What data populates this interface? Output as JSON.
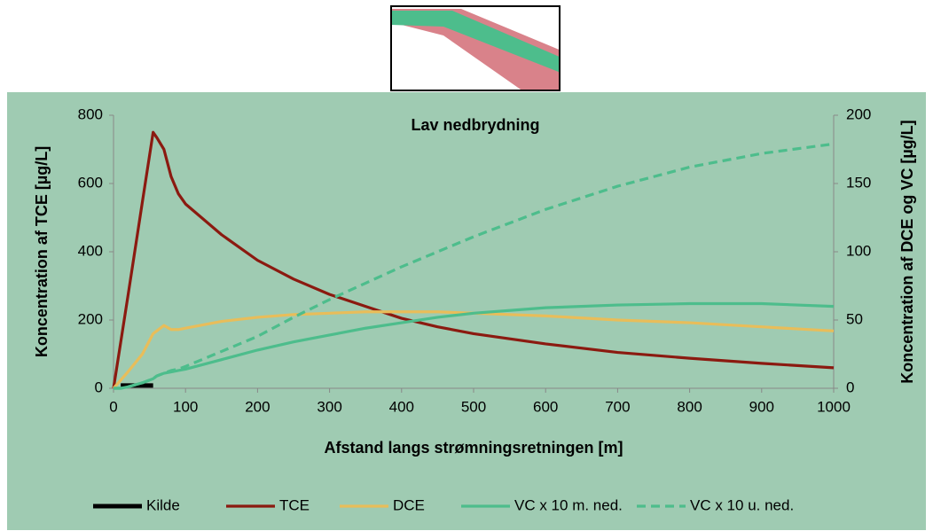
{
  "chart_data": {
    "type": "line",
    "title": "Lav nedbrydning",
    "x_label": "Afstand langs strømningsretningen [m]",
    "y_label": "Koncentration af TCE [µg/L]",
    "y2_label": "Koncentration af DCE og VC [µg/L]",
    "x": [
      0,
      10,
      20,
      40,
      55,
      60,
      70,
      80,
      90,
      100,
      150,
      200,
      250,
      300,
      350,
      400,
      450,
      500,
      600,
      700,
      800,
      900,
      1000
    ],
    "xlim": [
      0,
      1000
    ],
    "xticks": [
      0,
      100,
      200,
      300,
      400,
      500,
      600,
      700,
      800,
      900,
      1000
    ],
    "ylim": [
      0,
      800
    ],
    "yticks": [
      0,
      200,
      400,
      600,
      800
    ],
    "y2lim": [
      0,
      200
    ],
    "y2ticks": [
      0,
      50,
      100,
      150,
      200
    ],
    "grid": false,
    "legend": "bottom",
    "series": [
      {
        "name": "Kilde",
        "color": "#000000",
        "values": [
          null,
          8,
          8,
          8,
          8,
          null,
          null,
          null,
          null,
          null,
          null,
          null,
          null,
          null,
          null,
          null,
          null,
          null,
          null,
          null,
          null,
          null,
          null
        ]
      },
      {
        "name": "TCE",
        "color": "#8b1a10",
        "values": [
          0,
          135,
          270,
          545,
          750,
          735,
          700,
          620,
          570,
          540,
          450,
          375,
          320,
          275,
          240,
          205,
          180,
          160,
          130,
          105,
          88,
          73,
          60
        ]
      },
      {
        "name": "DCE",
        "color": "#e8bd5a",
        "axis": "y2",
        "values": [
          0,
          6,
          12,
          25,
          40,
          42,
          46,
          43,
          43,
          44,
          49,
          52,
          54,
          55,
          56,
          56,
          56,
          55,
          53,
          50,
          48,
          45,
          42
        ]
      },
      {
        "name": "VC x 10 m. ned.",
        "color": "#4dbd8c",
        "axis": "y2",
        "values": [
          0,
          0,
          1,
          4,
          7,
          9,
          11,
          12,
          13,
          14,
          21,
          28,
          34,
          39,
          44,
          48,
          52,
          55,
          59,
          61,
          62,
          62,
          60
        ]
      },
      {
        "name": "VC x 10 u. ned.",
        "color": "#4dbd8c",
        "axis": "y2",
        "dashed": true,
        "values": [
          0,
          0,
          1,
          4,
          7,
          9,
          11,
          13,
          14,
          16,
          27,
          38,
          52,
          65,
          77,
          89,
          100,
          111,
          131,
          148,
          162,
          172,
          179
        ]
      }
    ]
  }
}
